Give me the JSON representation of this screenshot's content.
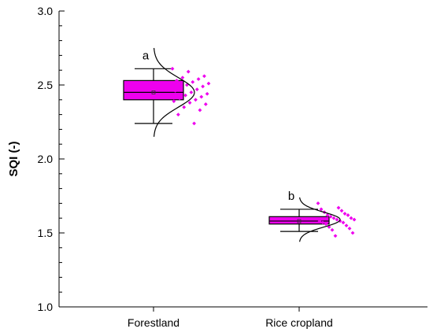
{
  "chart_data": {
    "type": "box",
    "ylabel": "SQI (-)",
    "xlabel": "",
    "ylim": [
      1.0,
      3.0
    ],
    "yticks": [
      "1.0",
      "1.5",
      "2.0",
      "2.5",
      "3.0"
    ],
    "categories": [
      "Forestland",
      "Rice cropland"
    ],
    "box_color": "#ee00ee",
    "point_color": "#ee00ee",
    "groups": [
      {
        "category": "Forestland",
        "letter": "a",
        "whisker_low": 2.24,
        "q1": 2.4,
        "median": 2.45,
        "mean": 2.45,
        "q3": 2.53,
        "whisker_high": 2.61,
        "normal_mean": 2.45,
        "normal_sd": 0.1,
        "points": [
          2.61,
          2.59,
          2.56,
          2.55,
          2.54,
          2.53,
          2.52,
          2.51,
          2.5,
          2.49,
          2.48,
          2.47,
          2.46,
          2.45,
          2.44,
          2.43,
          2.42,
          2.41,
          2.4,
          2.39,
          2.38,
          2.37,
          2.35,
          2.33,
          2.3,
          2.24
        ]
      },
      {
        "category": "Rice cropland",
        "letter": "b",
        "whisker_low": 1.51,
        "q1": 1.56,
        "median": 1.58,
        "mean": 1.58,
        "q3": 1.61,
        "whisker_high": 1.66,
        "normal_mean": 1.59,
        "normal_sd": 0.05,
        "points": [
          1.7,
          1.67,
          1.66,
          1.65,
          1.64,
          1.63,
          1.62,
          1.62,
          1.61,
          1.6,
          1.6,
          1.59,
          1.59,
          1.58,
          1.58,
          1.57,
          1.57,
          1.56,
          1.55,
          1.54,
          1.53,
          1.52,
          1.5,
          1.48
        ]
      }
    ]
  }
}
